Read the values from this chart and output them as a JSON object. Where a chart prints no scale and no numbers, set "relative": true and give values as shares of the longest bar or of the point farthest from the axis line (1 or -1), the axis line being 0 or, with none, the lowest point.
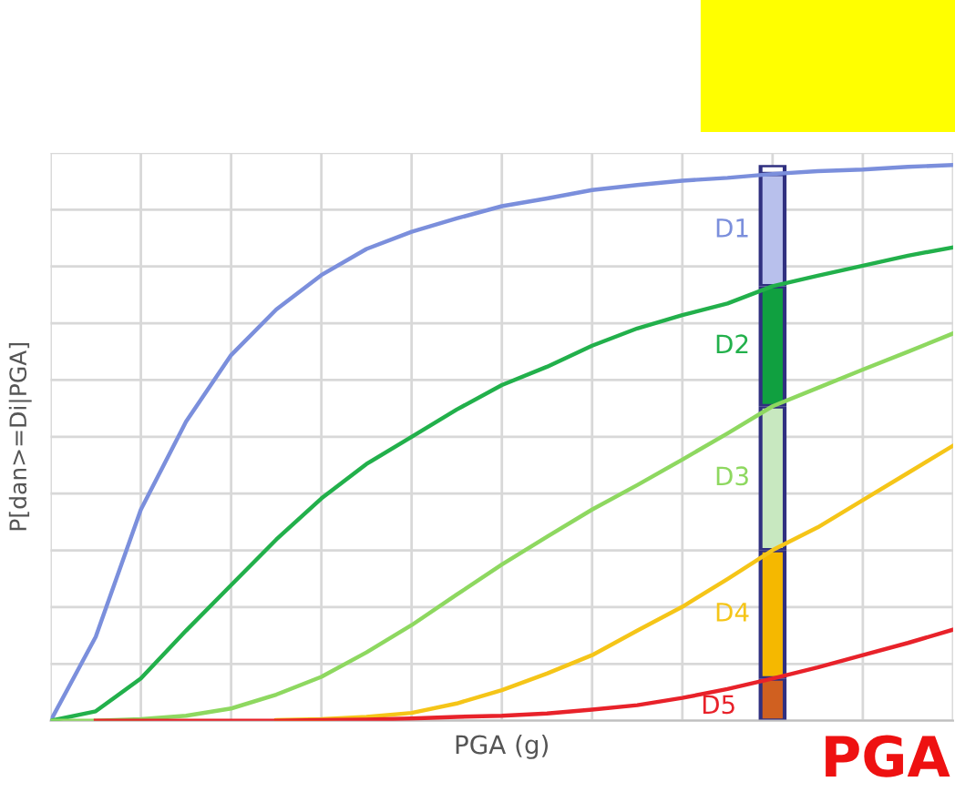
{
  "chart_data": {
    "type": "line",
    "relative": true,
    "xlabel": "PGA (g)",
    "ylabel": "P[dan>=Di|PGA]",
    "grid": true,
    "tick_labels": false,
    "marker": "none",
    "line_style": "solid",
    "annotations": [
      "PGA"
    ],
    "categories": [
      null,
      null,
      null,
      null,
      null,
      null,
      null,
      null,
      null,
      null,
      null,
      null,
      null,
      null,
      null,
      null,
      null,
      null,
      null,
      null,
      null
    ],
    "series": [
      {
        "name": "D1",
        "color": "#7b8fdc",
        "values": [
          0,
          0.151,
          0.38,
          0.538,
          0.658,
          0.74,
          0.802,
          0.849,
          0.88,
          0.904,
          0.926,
          0.94,
          0.955,
          0.964,
          0.972,
          0.977,
          0.984,
          0.989,
          0.992,
          0.997,
          1
        ]
      },
      {
        "name": "D2",
        "color": "#22b04b",
        "values": [
          0,
          0.017,
          0.076,
          0.162,
          0.244,
          0.326,
          0.4,
          0.462,
          0.511,
          0.56,
          0.604,
          0.637,
          0.675,
          0.706,
          0.73,
          0.751,
          0.782,
          0.801,
          0.819,
          0.837,
          0.852
        ]
      },
      {
        "name": "D3",
        "color": "#8ed860",
        "values": [
          0,
          0,
          0.003,
          0.009,
          0.022,
          0.047,
          0.079,
          0.123,
          0.172,
          0.227,
          0.281,
          0.331,
          0.38,
          0.424,
          0.47,
          0.517,
          0.566,
          0.599,
          0.632,
          0.664,
          0.697
        ]
      },
      {
        "name": "D4",
        "color": "#f5c518",
        "values": [
          null,
          null,
          null,
          null,
          null,
          0.001,
          0.003,
          0.007,
          0.014,
          0.031,
          0.055,
          0.085,
          0.118,
          0.162,
          0.205,
          0.255,
          0.307,
          0.348,
          0.397,
          0.446,
          0.495
        ]
      },
      {
        "name": "D5",
        "color": "#e8222a",
        "values": [
          null,
          0,
          0,
          0,
          0,
          0,
          0.001,
          0.002,
          0.004,
          0.007,
          0.009,
          0.013,
          0.02,
          0.028,
          0.041,
          0.057,
          0.076,
          0.096,
          0.118,
          0.14,
          0.164
        ]
      }
    ]
  }
}
